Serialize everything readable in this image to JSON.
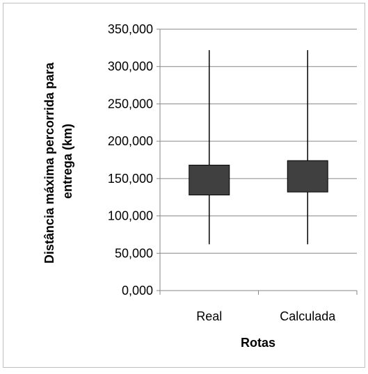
{
  "chart_data": {
    "type": "boxplot",
    "title": "",
    "xlabel": "Rotas",
    "ylabel_lines": [
      "Distância máxima percorrida para",
      "entrega (km)"
    ],
    "categories": [
      "Real",
      "Calculada"
    ],
    "y_ticks": [
      "0,000",
      "50,000",
      "100,000",
      "150,000",
      "200,000",
      "250,000",
      "300,000",
      "350,000"
    ],
    "ylim": [
      0,
      350
    ],
    "grid": true,
    "legend": "none",
    "box_color": "#404040",
    "series": [
      {
        "category": "Real",
        "min": 62,
        "q1": 128,
        "q3": 168,
        "max": 322
      },
      {
        "category": "Calculada",
        "min": 62,
        "q1": 132,
        "q3": 174,
        "max": 322
      }
    ]
  }
}
